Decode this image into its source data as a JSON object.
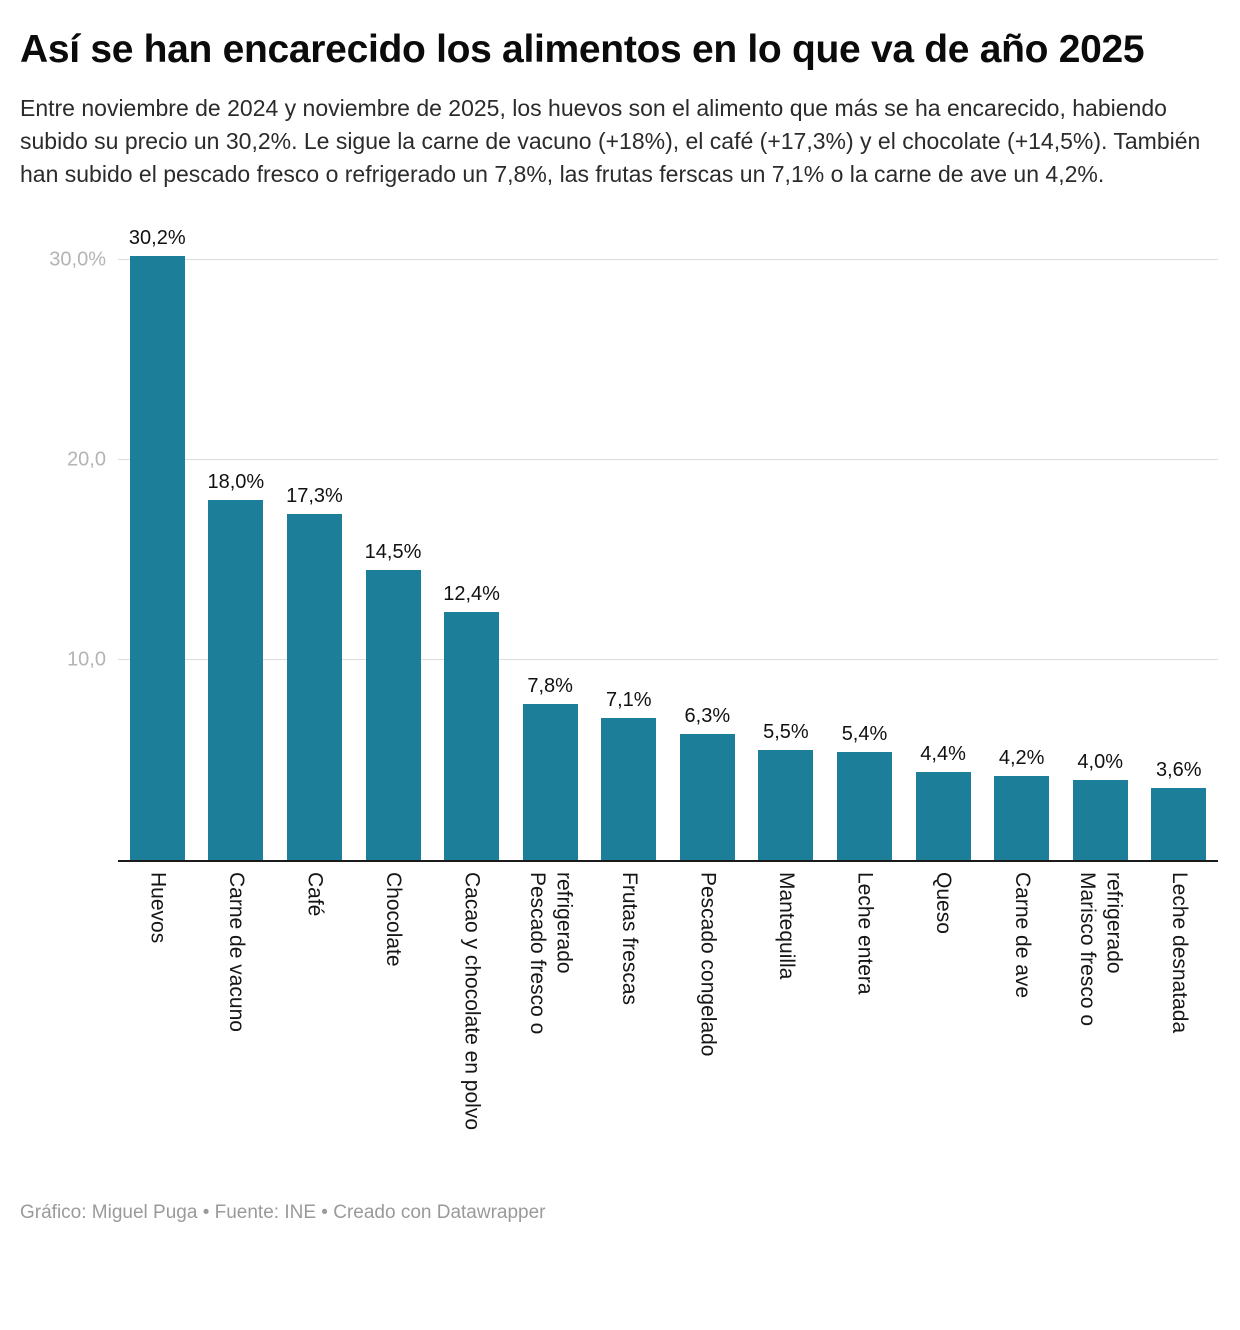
{
  "header": {
    "title": "Así se han encarecido los alimentos en lo que va de año 2025",
    "description": "Entre noviembre de 2024 y noviembre de 2025, los huevos son el alimento que más se ha encarecido, habiendo subido su precio un 30,2%. Le sigue la carne de vacuno (+18%), el café (+17,3%) y el chocolate (+14,5%). También han subido el pescado fresco o refrigerado un 7,8%, las frutas ferscas un 7,1% o la carne de ave un 4,2%."
  },
  "chart_data": {
    "type": "bar",
    "title": "Así se han encarecido los alimentos en lo que va de año 2025",
    "categories": [
      "Huevos",
      "Carne de vacuno",
      "Café",
      "Chocolate",
      "Cacao y chocolate en polvo",
      "Pescado fresco o\nrefrigerado",
      "Frutas frescas",
      "Pescado congelado",
      "Mantequilla",
      "Leche entera",
      "Queso",
      "Carne de ave",
      "Marisco fresco o\nrefrigerado",
      "Leche desnatada"
    ],
    "values": [
      30.2,
      18.0,
      17.3,
      14.5,
      12.4,
      7.8,
      7.1,
      6.3,
      5.5,
      5.4,
      4.4,
      4.2,
      4.0,
      3.6
    ],
    "value_labels": [
      "30,2%",
      "18,0%",
      "17,3%",
      "14,5%",
      "12,4%",
      "7,8%",
      "7,1%",
      "6,3%",
      "5,5%",
      "5,4%",
      "4,4%",
      "4,2%",
      "4,0%",
      "3,6%"
    ],
    "y_ticks": [
      {
        "value": 30,
        "label": "30,0%"
      },
      {
        "value": 20,
        "label": "20,0"
      },
      {
        "value": 10,
        "label": "10,0"
      }
    ],
    "ylim": [
      0,
      32
    ],
    "xlabel": "",
    "ylabel": "",
    "grid": true,
    "legend": "none",
    "bar_color": "#1d7e9a",
    "baseline_color": "#1a1a1a"
  },
  "footer": {
    "credit": "Gráfico: Miguel Puga • Fuente: INE • Creado con Datawrapper"
  }
}
